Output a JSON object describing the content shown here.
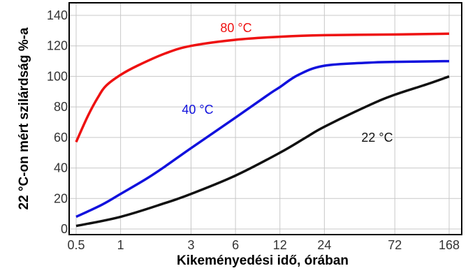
{
  "chart_data": {
    "type": "line",
    "title": "",
    "xlabel": "Kikeményedési idő, órában",
    "ylabel": "22 °C-on mért szilárdság %-a",
    "x_scale": "log",
    "xlim": [
      0.5,
      168
    ],
    "ylim": [
      0,
      140
    ],
    "grid": true,
    "x_ticks": [
      0.5,
      1,
      3,
      6,
      12,
      24,
      72,
      168
    ],
    "x_tick_labels": [
      "0.5",
      "1",
      "3",
      "6",
      "12",
      "24",
      "72",
      "168"
    ],
    "y_ticks": [
      0,
      20,
      40,
      60,
      80,
      100,
      120,
      140
    ],
    "y_tick_labels": [
      "0",
      "20",
      "40",
      "60",
      "80",
      "100",
      "120",
      "140"
    ],
    "series": [
      {
        "name": "80 °C",
        "color": "#ee1111",
        "x": [
          0.5,
          0.6,
          0.7,
          0.8,
          1,
          1.3,
          2,
          3,
          6,
          12,
          24,
          72,
          168
        ],
        "y": [
          57,
          74,
          86,
          94,
          101,
          107,
          115,
          120,
          124,
          126,
          127,
          127.5,
          128
        ]
      },
      {
        "name": "40 °C",
        "color": "#1111dd",
        "x": [
          0.5,
          0.75,
          1,
          1.5,
          2,
          3,
          6,
          10,
          12,
          16,
          24,
          48,
          72,
          168
        ],
        "y": [
          8,
          16,
          23,
          33,
          41,
          53,
          73,
          88,
          93,
          101,
          107,
          109,
          109.5,
          110
        ]
      },
      {
        "name": "22 °C",
        "color": "#111111",
        "x": [
          0.5,
          1,
          2,
          3,
          6,
          12,
          18,
          24,
          48,
          72,
          120,
          168
        ],
        "y": [
          2,
          8,
          17,
          23,
          35,
          50,
          60,
          67,
          81,
          88,
          95,
          100
        ]
      }
    ]
  }
}
